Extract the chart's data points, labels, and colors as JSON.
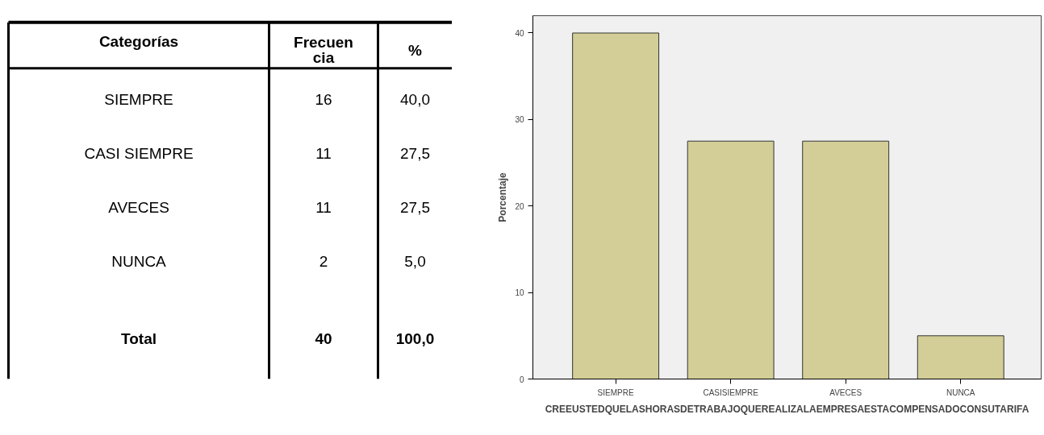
{
  "chart_data": [
    {
      "type": "other",
      "xlabel": "Categorías",
      "categories": [
        "SIEMPRE",
        "CASI SIEMPRE",
        "AVECES",
        "NUNCA"
      ],
      "series": [
        {
          "name": "Frecuencia",
          "values": [
            16,
            11,
            11,
            2
          ]
        },
        {
          "name": "%",
          "values": [
            40.0,
            27.5,
            27.5,
            5.0
          ],
          "value_labels": [
            "40,0",
            "27,5",
            "27,5",
            "5,0"
          ]
        }
      ],
      "data_labels": true,
      "annotations": [
        "Total"
      ],
      "totals": [
        "40",
        "100,0"
      ]
    },
    {
      "type": "bar",
      "categories": [
        "SIEMPRE",
        "CASISIEMPRE",
        "AVECES",
        "NUNCA"
      ],
      "values": [
        40.0,
        27.5,
        27.5,
        5.0
      ],
      "color": "#d3ce97",
      "ylabel": "Porcentaje",
      "xlabel": "CREEUSTEDQUELASHORASDETRABAJOQUEREALIZALAEMPRESAESTACOMPENSADOCONSUTARIFA",
      "ylim": [
        0,
        42
      ],
      "yticks": [
        0,
        10,
        20,
        30,
        40
      ],
      "grid": false
    }
  ]
}
